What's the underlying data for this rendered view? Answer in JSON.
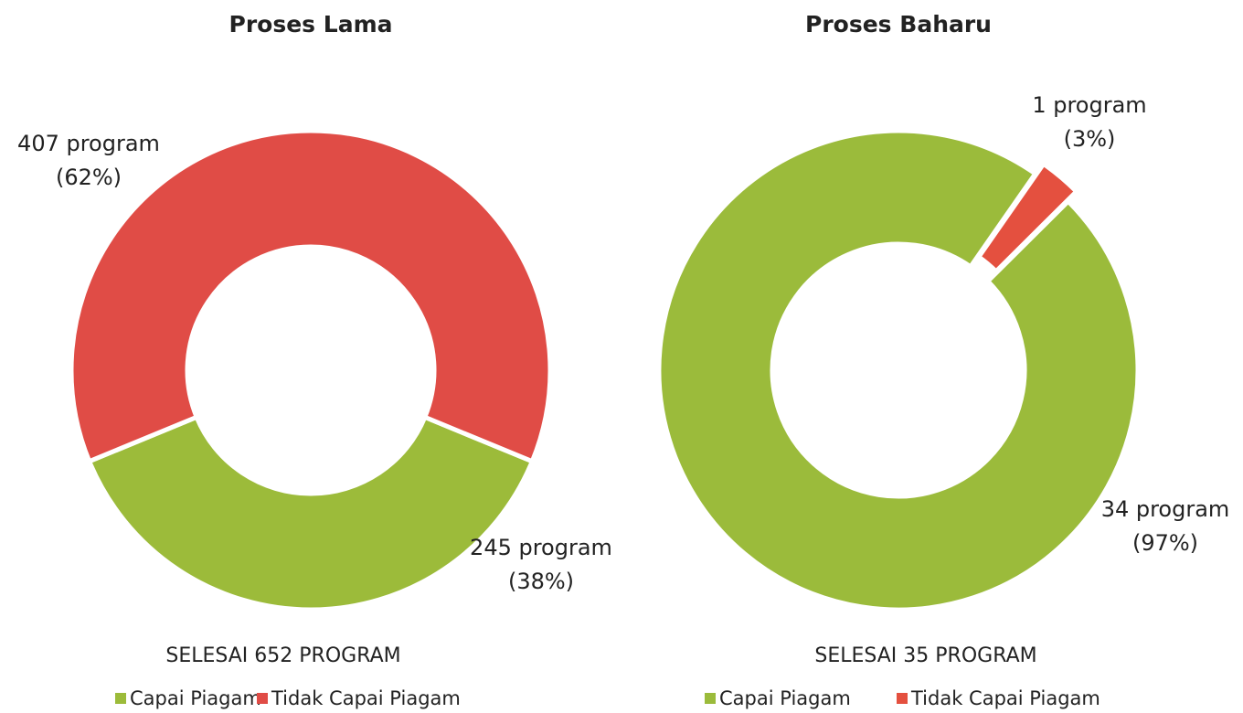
{
  "chart_data": [
    {
      "type": "donut",
      "title": "Proses Lama",
      "subtitle": "SELESAI 652 PROGRAM",
      "categories": [
        "Capai Piagam",
        "Tidak Capai Piagam"
      ],
      "values": [
        245,
        407
      ],
      "value_labels": [
        "245 program",
        "407 program"
      ],
      "percent_labels": [
        "(38%)",
        "(62%)"
      ],
      "colors": [
        "#9cbb3a",
        "#e04c46"
      ]
    },
    {
      "type": "donut",
      "title": "Proses Baharu",
      "subtitle": "SELESAI 35 PROGRAM",
      "categories": [
        "Capai Piagam",
        "Tidak Capai Piagam"
      ],
      "values": [
        34,
        1
      ],
      "value_labels": [
        "34 program",
        "1 program"
      ],
      "percent_labels": [
        "(97%)",
        "(3%)"
      ],
      "colors": [
        "#9bbb3b",
        "#e4503f"
      ]
    }
  ]
}
